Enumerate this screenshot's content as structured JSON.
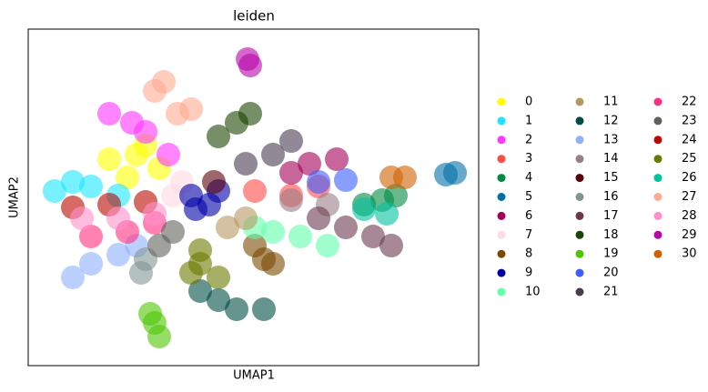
{
  "chart_data": {
    "type": "scatter",
    "title": "leiden",
    "x_label": "UMAP1",
    "y_label": "UMAP2",
    "xlim": [
      0,
      495
    ],
    "ylim": [
      0,
      370
    ],
    "series": [
      {
        "name": "0",
        "color": "#FFFF00",
        "x": [
          89,
          119,
          144,
          109,
          129
        ],
        "y": [
          227,
          232,
          217,
          207,
          242
        ]
      },
      {
        "name": "1",
        "color": "#1CE6FF",
        "x": [
          29,
          69,
          99,
          49
        ],
        "y": [
          192,
          197,
          187,
          202
        ]
      },
      {
        "name": "2",
        "color": "#FF34FF",
        "x": [
          89,
          129,
          154,
          114
        ],
        "y": [
          277,
          257,
          232,
          267
        ]
      },
      {
        "name": "3",
        "color": "#FF4A46",
        "x": [
          249,
          289,
          319
        ],
        "y": [
          192,
          187,
          197
        ]
      },
      {
        "name": "4",
        "color": "#008941",
        "x": [
          389,
          369,
          404
        ],
        "y": [
          182,
          177,
          187
        ]
      },
      {
        "name": "5",
        "color": "#006FA6",
        "x": [
          459,
          469
        ],
        "y": [
          210,
          212
        ]
      },
      {
        "name": "6",
        "color": "#A30059",
        "x": [
          309,
          339,
          289
        ],
        "y": [
          222,
          227,
          212
        ]
      },
      {
        "name": "7",
        "color": "#FFDBE5",
        "x": [
          169,
          159
        ],
        "y": [
          202,
          187
        ]
      },
      {
        "name": "8",
        "color": "#7A4900",
        "x": [
          259,
          269,
          249
        ],
        "y": [
          117,
          112,
          132
        ]
      },
      {
        "name": "9",
        "color": "#0000A6",
        "x": [
          179,
          199,
          209,
          184
        ],
        "y": [
          187,
          177,
          192,
          172
        ]
      },
      {
        "name": "10",
        "color": "#63FFAC",
        "x": [
          269,
          299,
          329,
          249
        ],
        "y": [
          147,
          142,
          132,
          152
        ]
      },
      {
        "name": "11",
        "color": "#B79762",
        "x": [
          219,
          239
        ],
        "y": [
          152,
          162
        ]
      },
      {
        "name": "12",
        "color": "#004D43",
        "x": [
          209,
          229,
          259,
          189
        ],
        "y": [
          72,
          62,
          62,
          82
        ]
      },
      {
        "name": "13",
        "color": "#8FB0FF",
        "x": [
          69,
          99,
          49,
          119
        ],
        "y": [
          112,
          122,
          97,
          132
        ]
      },
      {
        "name": "14",
        "color": "#997D87",
        "x": [
          289,
          329
        ],
        "y": [
          182,
          177
        ]
      },
      {
        "name": "15",
        "color": "#5A0007",
        "x": [
          204
        ],
        "y": [
          202
        ]
      },
      {
        "name": "16",
        "color": "#809693",
        "x": [
          124,
          129
        ],
        "y": [
          102,
          117
        ]
      },
      {
        "name": "17",
        "color": "#6A3A4C",
        "x": [
          349,
          379,
          399,
          319
        ],
        "y": [
          152,
          142,
          132,
          162
        ]
      },
      {
        "name": "18",
        "color": "#1B4400",
        "x": [
          209,
          229,
          244
        ],
        "y": [
          252,
          267,
          277
        ]
      },
      {
        "name": "19",
        "color": "#4FC601",
        "x": [
          139,
          144,
          134
        ],
        "y": [
          47,
          32,
          57
        ]
      },
      {
        "name": "20",
        "color": "#3B5DFF",
        "x": [
          319,
          349
        ],
        "y": [
          202,
          204
        ]
      },
      {
        "name": "21",
        "color": "#4A3B53",
        "x": [
          239,
          269,
          289
        ],
        "y": [
          222,
          232,
          247
        ]
      },
      {
        "name": "22",
        "color": "#FF2F80",
        "x": [
          69,
          109,
          139
        ],
        "y": [
          142,
          147,
          157
        ]
      },
      {
        "name": "23",
        "color": "#61615A",
        "x": [
          159,
          144
        ],
        "y": [
          147,
          132
        ]
      },
      {
        "name": "24",
        "color": "#BA0900",
        "x": [
          49,
          89,
          129
        ],
        "y": [
          174,
          177,
          180
        ]
      },
      {
        "name": "25",
        "color": "#6B7900",
        "x": [
          189,
          179,
          209,
          189
        ],
        "y": [
          112,
          102,
          97,
          127
        ]
      },
      {
        "name": "26",
        "color": "#00C2A0",
        "x": [
          369,
          394
        ],
        "y": [
          172,
          167
        ]
      },
      {
        "name": "27",
        "color": "#FFAA92",
        "x": [
          139,
          164,
          149,
          179
        ],
        "y": [
          302,
          277,
          312,
          282
        ]
      },
      {
        "name": "28",
        "color": "#FF90C9",
        "x": [
          59,
          99,
          139
        ],
        "y": [
          162,
          162,
          167
        ]
      },
      {
        "name": "29",
        "color": "#B903AA",
        "x": [
          241,
          244
        ],
        "y": [
          337,
          330
        ]
      },
      {
        "name": "30",
        "color": "#D16100",
        "x": [
          399,
          414
        ],
        "y": [
          207,
          207
        ]
      }
    ]
  }
}
